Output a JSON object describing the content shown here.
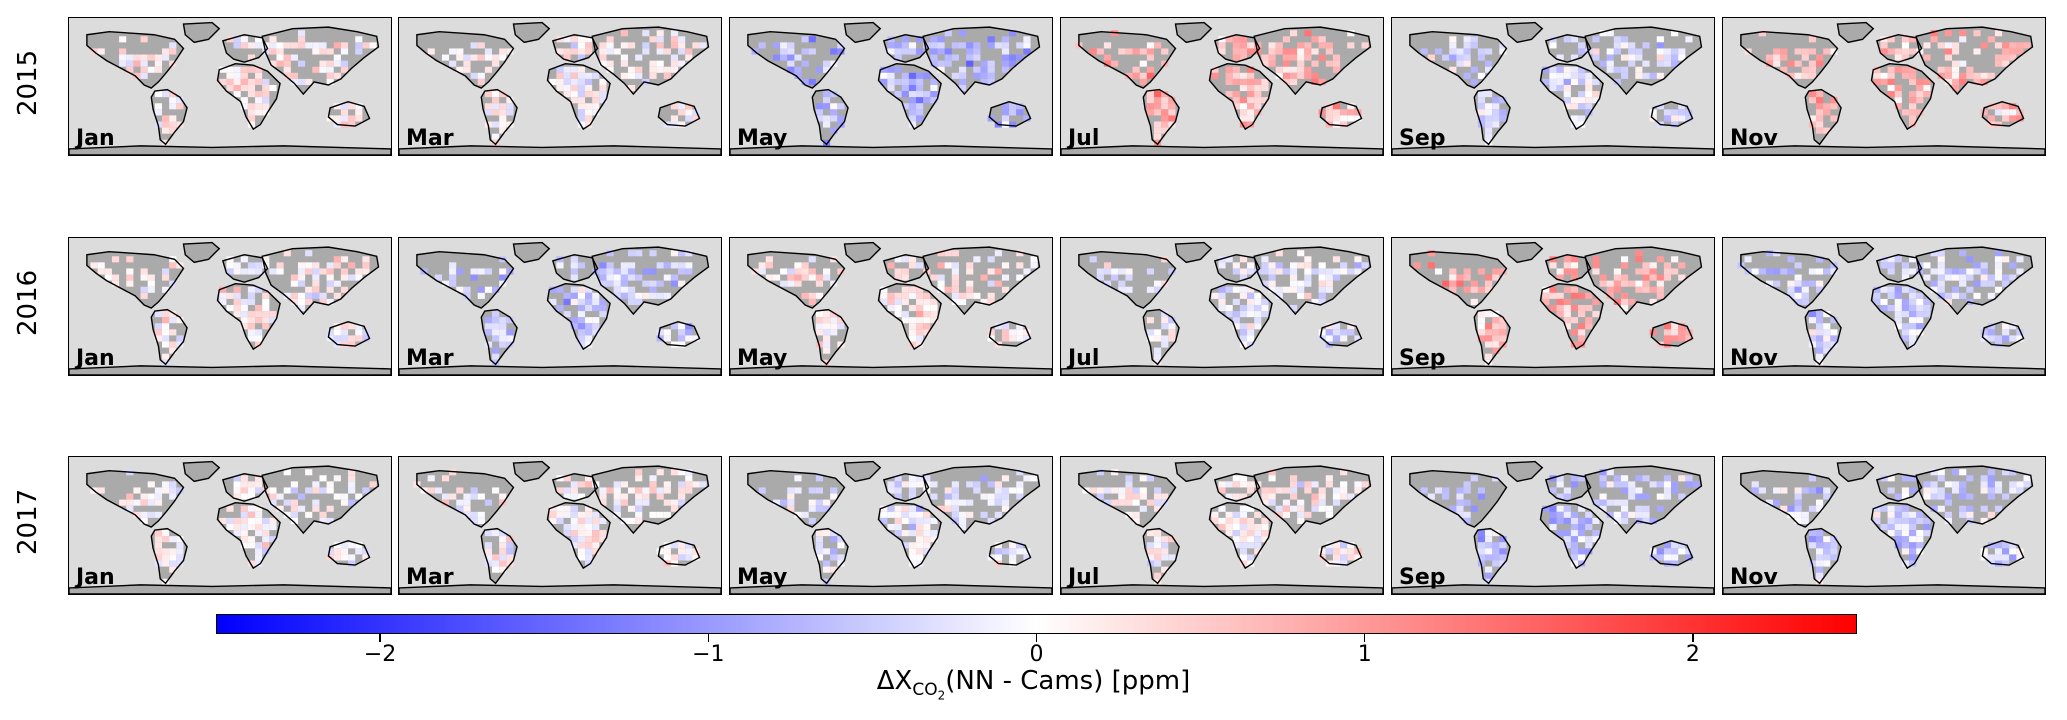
{
  "chart_data": {
    "type": "heatmap",
    "title": "",
    "rows": [
      "2015",
      "2016",
      "2017"
    ],
    "columns": [
      "Jan",
      "Mar",
      "May",
      "Jul",
      "Sep",
      "Nov"
    ],
    "panel_bias": [
      [
        0.15,
        0.05,
        -0.65,
        0.6,
        -0.3,
        0.55
      ],
      [
        0.1,
        -0.45,
        0.2,
        -0.15,
        0.65,
        -0.35
      ],
      [
        0.0,
        0.05,
        -0.2,
        0.05,
        -0.5,
        -0.4
      ]
    ],
    "colorbar": {
      "label_delta": "ΔX",
      "label_sub": "CO",
      "label_subsub": "2",
      "label_rest": "(NN - Cams) [ppm]",
      "vmin": -2.5,
      "vmax": 2.5,
      "ticks": [
        -2,
        -1,
        0,
        1,
        2
      ],
      "tick_labels": [
        "−2",
        "−1",
        "0",
        "1",
        "2"
      ],
      "colormap": "bwr",
      "color_low": "#0000ff",
      "color_mid": "#ffffff",
      "color_high": "#ff0000"
    },
    "colors": {
      "ocean": "#dcdcdc",
      "land_no_data": "#aaaaaa",
      "coastline": "#000000"
    }
  }
}
